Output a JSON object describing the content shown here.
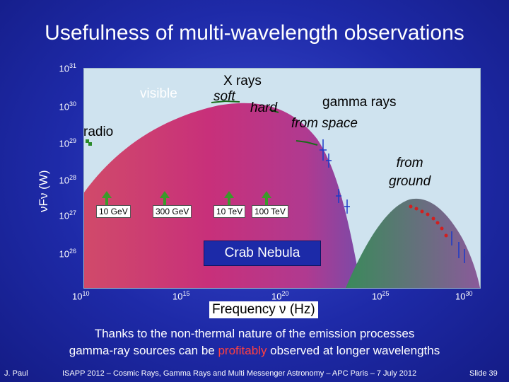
{
  "title": "Usefulness of multi-wavelength observations",
  "chart": {
    "ylabel": "νFν (W)",
    "xlabel": "Frequency ν (Hz)",
    "y_ticks": [
      {
        "base": "10",
        "exp": "31"
      },
      {
        "base": "10",
        "exp": "30"
      },
      {
        "base": "10",
        "exp": "29"
      },
      {
        "base": "10",
        "exp": "28"
      },
      {
        "base": "10",
        "exp": "27"
      },
      {
        "base": "10",
        "exp": "26"
      }
    ],
    "x_ticks": [
      {
        "base": "10",
        "exp": "10"
      },
      {
        "base": "10",
        "exp": "15"
      },
      {
        "base": "10",
        "exp": "20"
      },
      {
        "base": "10",
        "exp": "25"
      },
      {
        "base": "10",
        "exp": "30"
      }
    ],
    "labels": {
      "visible": "visible",
      "xrays": "X rays",
      "soft": "soft",
      "hard": "hard",
      "gamma": "gamma rays",
      "fromspace": "from space",
      "radio": "radio",
      "fromground_1": "from",
      "fromground_2": "ground"
    },
    "energy_labels": [
      "10 GeV",
      "300 GeV",
      "10 TeV",
      "100 TeV"
    ],
    "source_name": "Crab Nebula",
    "colors": {
      "synchrotron": "#c8307a",
      "inverse_compton": "#3a8a5a",
      "background": "#cfe3ef",
      "arrow": "#3a9a2a"
    }
  },
  "caption": {
    "line1": "Thanks to the non-thermal nature of the emission processes",
    "line2_pre": "gamma-ray sources can be ",
    "line2_highlight": "profitably",
    "line2_post": " observed at longer wavelengths"
  },
  "footer": {
    "author": "J. Paul",
    "event": "ISAPP 2012 – Cosmic Rays, Gamma Rays and Multi Messenger Astronomy – APC Paris – 7 July 2012",
    "slide": "Slide 39"
  }
}
